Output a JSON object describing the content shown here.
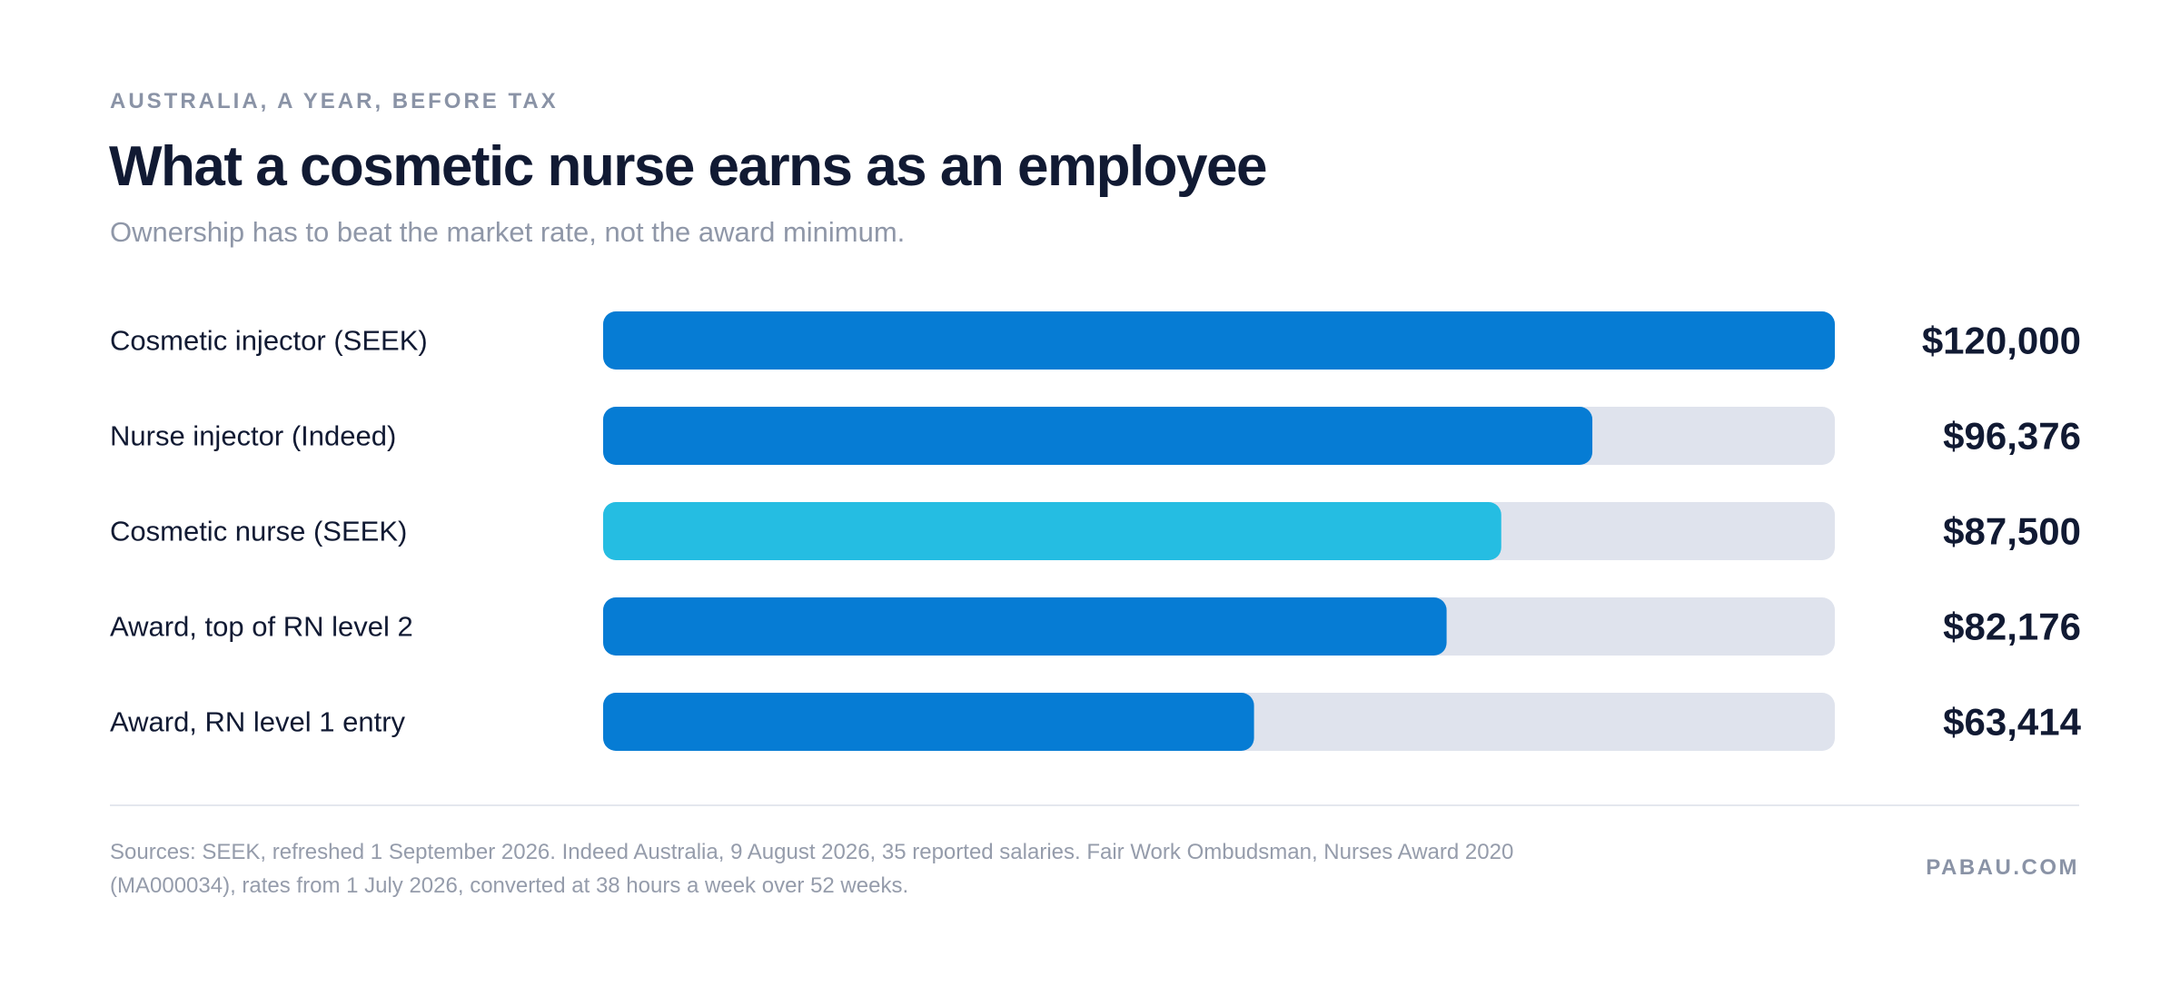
{
  "header": {
    "eyebrow": "AUSTRALIA, A YEAR, BEFORE TAX",
    "title": "What a cosmetic nurse earns as an employee",
    "subtitle": "Ownership has to beat the market rate, not the award minimum."
  },
  "chart_data": {
    "type": "bar",
    "orientation": "horizontal",
    "categories": [
      "Cosmetic injector (SEEK)",
      "Nurse injector (Indeed)",
      "Cosmetic nurse (SEEK)",
      "Award, top of RN level 2",
      "Award, RN level 1 entry"
    ],
    "values": [
      120000,
      96376,
      87500,
      82176,
      63414
    ],
    "value_labels": [
      "$120,000",
      "$96,376",
      "$87,500",
      "$82,176",
      "$63,414"
    ],
    "xlim": [
      0,
      120000
    ],
    "grid": false,
    "legend": "none",
    "colors": {
      "bar": "#067cd4",
      "highlight": "#25bde2",
      "track": "#dfe3ed"
    },
    "highlight_index": 2
  },
  "footer": {
    "sources": "Sources: SEEK, refreshed 1 September 2026. Indeed Australia, 9 August 2026, 35 reported salaries. Fair Work Ombudsman, Nurses Award 2020 (MA000034), rates from 1 July 2026, converted at 38 hours a week over 52 weeks.",
    "brand": "PABAU.COM"
  }
}
